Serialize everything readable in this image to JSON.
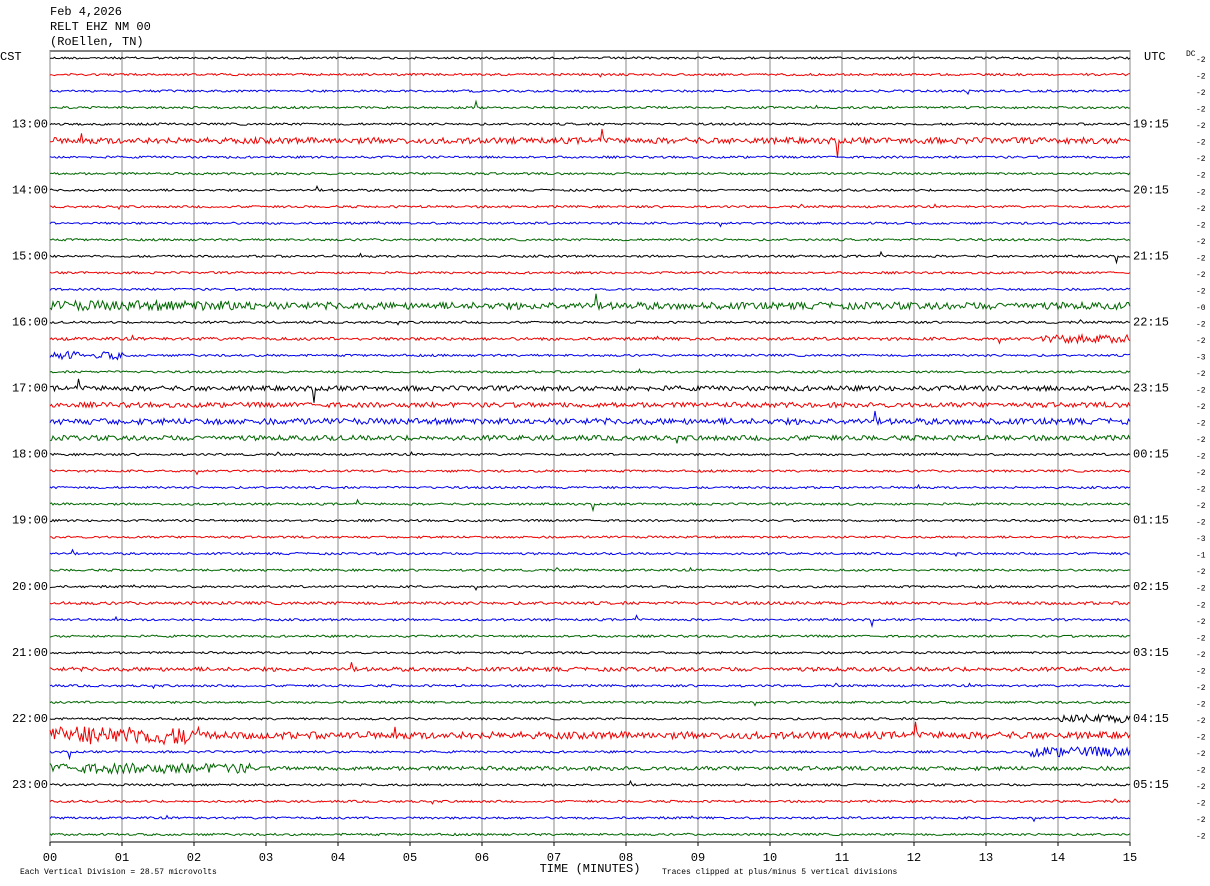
{
  "header": {
    "lines": [
      "Feb 4,2026",
      "RELT EHZ NM 00",
      "(RoEllen, TN)"
    ]
  },
  "left_zone": "CST",
  "right_zone": "UTC",
  "left_labels": [
    "13:00",
    "14:00",
    "15:00",
    "16:00",
    "17:00",
    "18:00",
    "19:00",
    "20:00",
    "21:00",
    "22:00",
    "23:00"
  ],
  "right_labels": [
    "19:15",
    "20:15",
    "21:15",
    "22:15",
    "23:15",
    "00:15",
    "01:15",
    "02:15",
    "03:15",
    "04:15",
    "05:15"
  ],
  "dc_label": "DC",
  "dc_offsets": [
    "-2",
    "-2",
    "-2",
    "-2",
    "-2",
    "-2",
    "-2",
    "-2",
    "-2",
    "-2",
    "-2",
    "-2",
    "-2",
    "-2",
    "-2",
    "-0",
    "-2",
    "-2",
    "-3",
    "-2",
    "-2",
    "-2",
    "-2",
    "-2",
    "-2",
    "-2",
    "-2",
    "-2",
    "-2",
    "-3",
    "-1",
    "-2",
    "-2",
    "-2",
    "-2",
    "-2",
    "-2",
    "-2",
    "-2",
    "-2",
    "-2",
    "-2",
    "-2",
    "-2",
    "-2",
    "-2",
    "-2",
    "-2"
  ],
  "x_ticks": [
    "00",
    "01",
    "02",
    "03",
    "04",
    "05",
    "06",
    "07",
    "08",
    "09",
    "10",
    "11",
    "12",
    "13",
    "14",
    "15"
  ],
  "x_label": "TIME (MINUTES)",
  "footer_left": "Each Vertical Division =   28.57 microvolts",
  "footer_right": "Traces clipped at plus/minus 5 vertical divisions"
}
